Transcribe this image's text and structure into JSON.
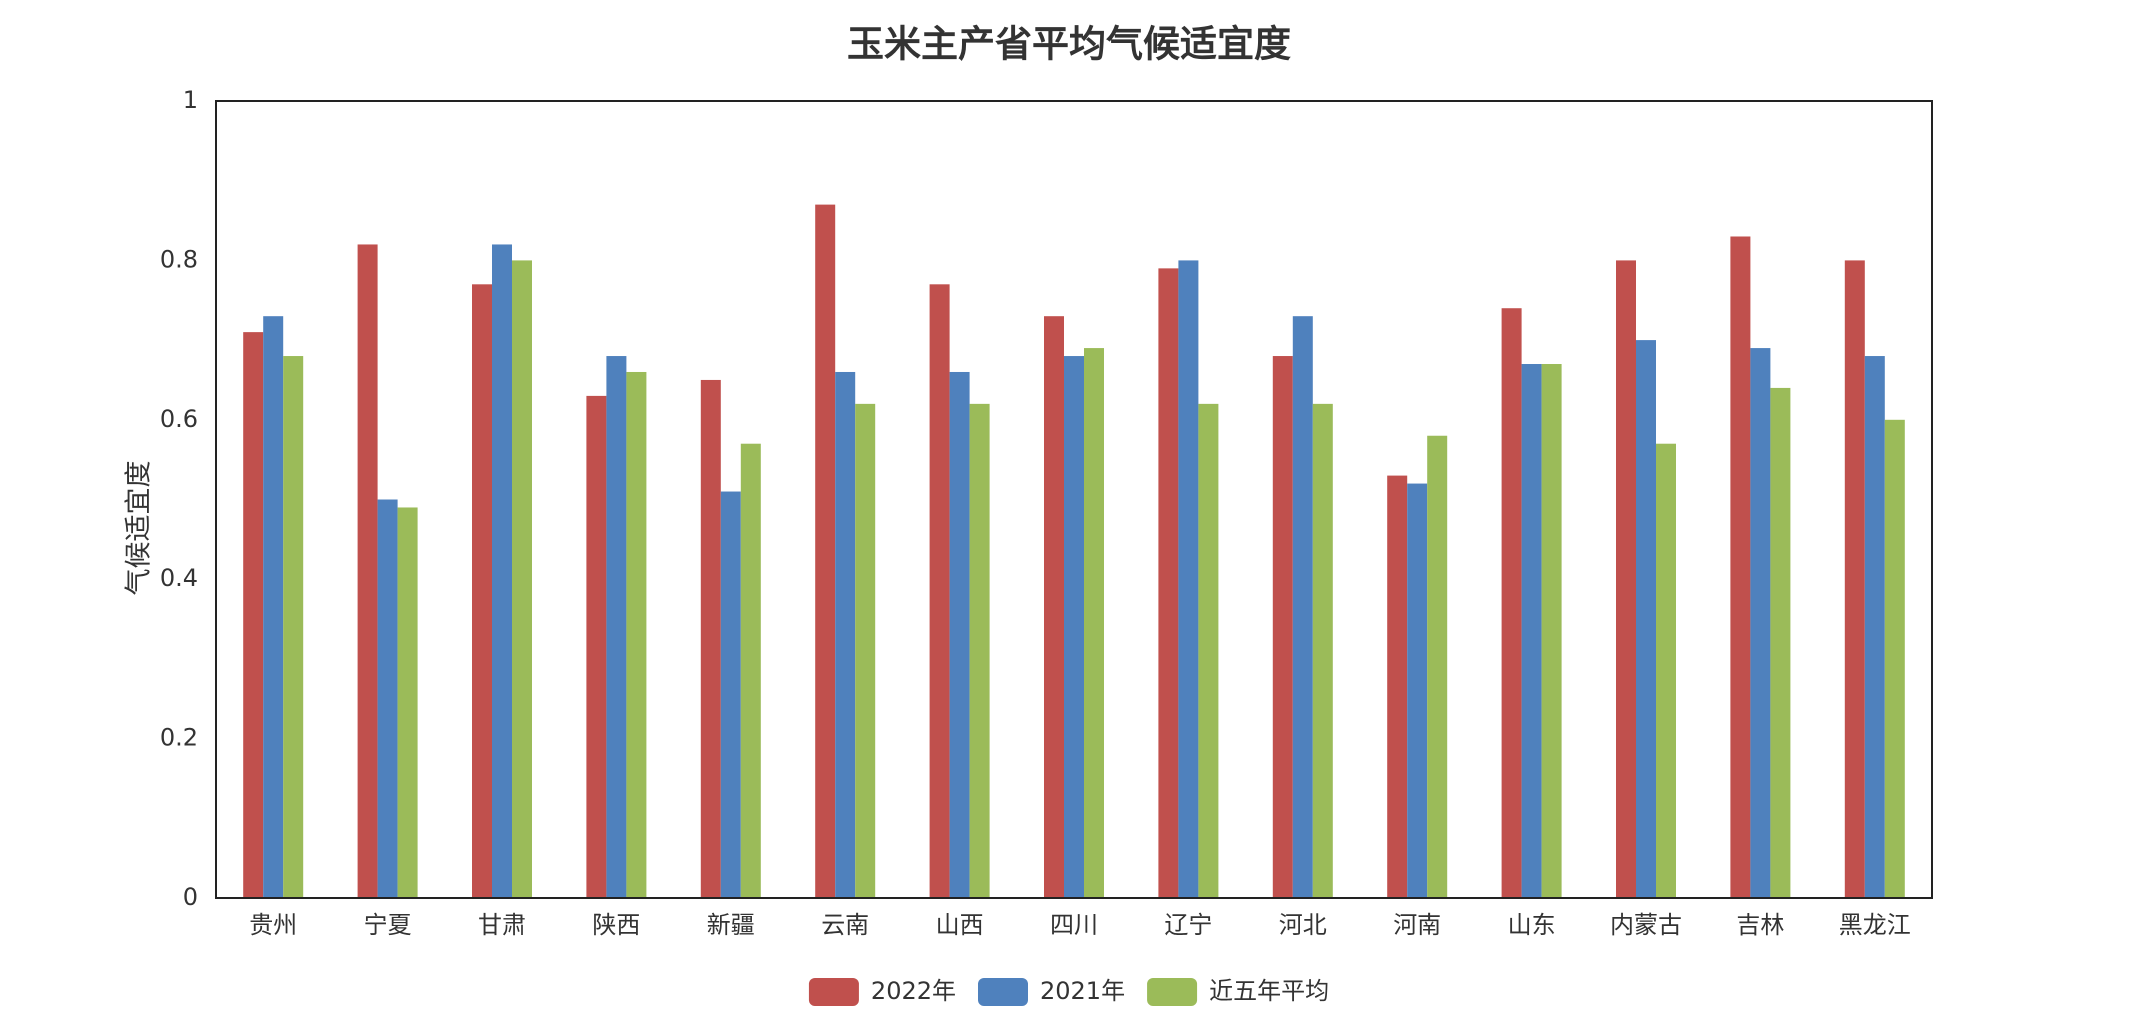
{
  "chart_data": {
    "type": "bar",
    "title": "玉米主产省平均气候适宜度",
    "xlabel": "",
    "ylabel": "气候适宜度",
    "ylim": [
      0,
      1
    ],
    "yticks": [
      "0",
      "0.2",
      "0.4",
      "0.6",
      "0.8",
      "1"
    ],
    "categories": [
      "贵州",
      "宁夏",
      "甘肃",
      "陕西",
      "新疆",
      "云南",
      "山西",
      "四川",
      "辽宁",
      "河北",
      "河南",
      "山东",
      "内蒙古",
      "吉林",
      "黑龙江"
    ],
    "series": [
      {
        "name": "2022年",
        "color": "#c0504d",
        "values": [
          0.71,
          0.82,
          0.77,
          0.63,
          0.65,
          0.87,
          0.77,
          0.73,
          0.79,
          0.68,
          0.53,
          0.74,
          0.8,
          0.83,
          0.8
        ]
      },
      {
        "name": "2021年",
        "color": "#4f81bd",
        "values": [
          0.73,
          0.5,
          0.82,
          0.68,
          0.51,
          0.66,
          0.66,
          0.68,
          0.8,
          0.73,
          0.52,
          0.67,
          0.7,
          0.69,
          0.68
        ]
      },
      {
        "name": "近五年平均",
        "color": "#9bbb59",
        "values": [
          0.68,
          0.49,
          0.8,
          0.66,
          0.57,
          0.62,
          0.62,
          0.69,
          0.62,
          0.62,
          0.58,
          0.67,
          0.57,
          0.64,
          0.6
        ]
      }
    ],
    "grid": false,
    "legend_position": "bottom-center"
  }
}
